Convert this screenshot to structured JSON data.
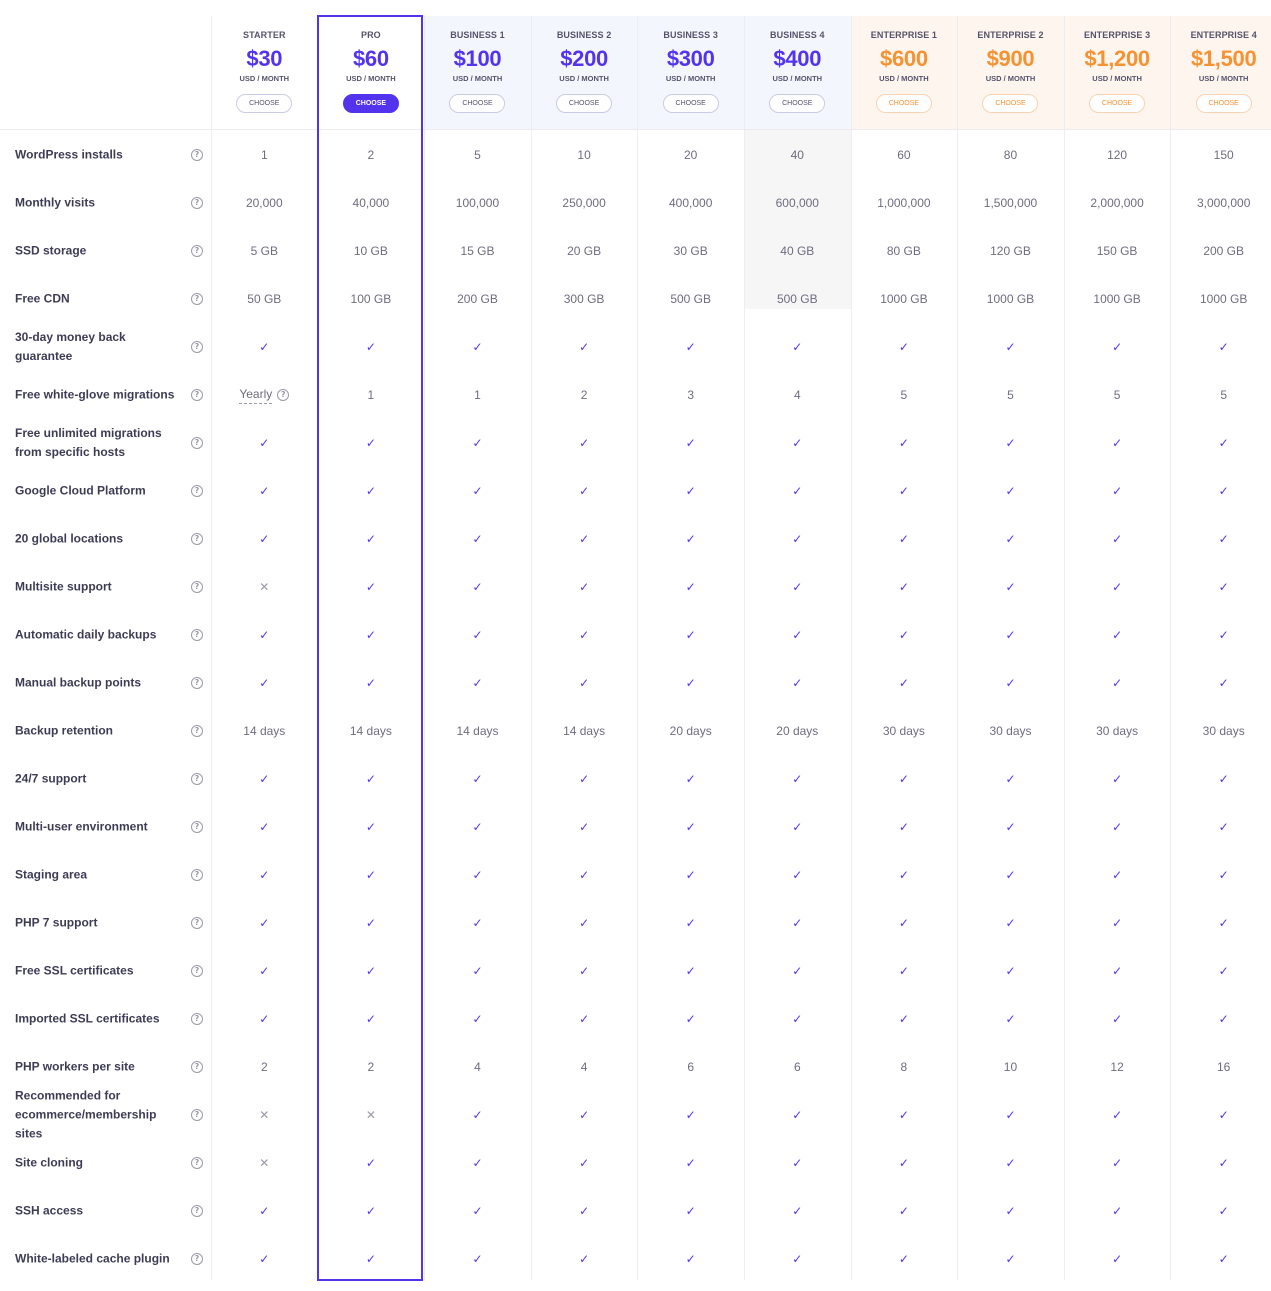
{
  "colors": {
    "accent": "#5333ed",
    "enterprise_accent": "#f79232",
    "business_bg": "#f4f6fd",
    "enterprise_bg": "#fef6ee"
  },
  "plans": [
    {
      "name": "STARTER",
      "price": "$30",
      "unit": "USD / MONTH",
      "button": "CHOOSE",
      "tier": "starter"
    },
    {
      "name": "PRO",
      "price": "$60",
      "unit": "USD / MONTH",
      "button": "CHOOSE",
      "tier": "pro"
    },
    {
      "name": "BUSINESS 1",
      "price": "$100",
      "unit": "USD / MONTH",
      "button": "CHOOSE",
      "tier": "business"
    },
    {
      "name": "BUSINESS 2",
      "price": "$200",
      "unit": "USD / MONTH",
      "button": "CHOOSE",
      "tier": "business"
    },
    {
      "name": "BUSINESS 3",
      "price": "$300",
      "unit": "USD / MONTH",
      "button": "CHOOSE",
      "tier": "business"
    },
    {
      "name": "BUSINESS 4",
      "price": "$400",
      "unit": "USD / MONTH",
      "button": "CHOOSE",
      "tier": "business"
    },
    {
      "name": "ENTERPRISE 1",
      "price": "$600",
      "unit": "USD / MONTH",
      "button": "CHOOSE",
      "tier": "enterprise"
    },
    {
      "name": "ENTERPRISE 2",
      "price": "$900",
      "unit": "USD / MONTH",
      "button": "CHOOSE",
      "tier": "enterprise"
    },
    {
      "name": "ENTERPRISE 3",
      "price": "$1,200",
      "unit": "USD / MONTH",
      "button": "CHOOSE",
      "tier": "enterprise"
    },
    {
      "name": "ENTERPRISE 4",
      "price": "$1,500",
      "unit": "USD / MONTH",
      "button": "CHOOSE",
      "tier": "enterprise"
    }
  ],
  "info_icon_glyph": "?",
  "check_glyph": "✓",
  "cross_glyph": "✕",
  "features": [
    {
      "label": "WordPress installs",
      "values": [
        "1",
        "2",
        "5",
        "10",
        "20",
        "40",
        "60",
        "80",
        "120",
        "150"
      ]
    },
    {
      "label": "Monthly visits",
      "values": [
        "20,000",
        "40,000",
        "100,000",
        "250,000",
        "400,000",
        "600,000",
        "1,000,000",
        "1,500,000",
        "2,000,000",
        "3,000,000"
      ]
    },
    {
      "label": "SSD storage",
      "values": [
        "5 GB",
        "10 GB",
        "15 GB",
        "20 GB",
        "30 GB",
        "40 GB",
        "80 GB",
        "120 GB",
        "150 GB",
        "200 GB"
      ]
    },
    {
      "label": "Free CDN",
      "values": [
        "50 GB",
        "100 GB",
        "200 GB",
        "300 GB",
        "500 GB",
        "500 GB",
        "1000 GB",
        "1000 GB",
        "1000 GB",
        "1000 GB"
      ]
    },
    {
      "label": "30-day money back guarantee",
      "values": [
        "check",
        "check",
        "check",
        "check",
        "check",
        "check",
        "check",
        "check",
        "check",
        "check"
      ]
    },
    {
      "label": "Free white-glove migrations",
      "values": [
        "Yearly",
        "1",
        "1",
        "2",
        "3",
        "4",
        "5",
        "5",
        "5",
        "5"
      ]
    },
    {
      "label": "Free unlimited migrations from specific hosts",
      "values": [
        "check",
        "check",
        "check",
        "check",
        "check",
        "check",
        "check",
        "check",
        "check",
        "check"
      ]
    },
    {
      "label": "Google Cloud Platform",
      "values": [
        "check",
        "check",
        "check",
        "check",
        "check",
        "check",
        "check",
        "check",
        "check",
        "check"
      ]
    },
    {
      "label": "20 global locations",
      "values": [
        "check",
        "check",
        "check",
        "check",
        "check",
        "check",
        "check",
        "check",
        "check",
        "check"
      ]
    },
    {
      "label": "Multisite support",
      "values": [
        "cross",
        "check",
        "check",
        "check",
        "check",
        "check",
        "check",
        "check",
        "check",
        "check"
      ]
    },
    {
      "label": "Automatic daily backups",
      "values": [
        "check",
        "check",
        "check",
        "check",
        "check",
        "check",
        "check",
        "check",
        "check",
        "check"
      ]
    },
    {
      "label": "Manual backup points",
      "values": [
        "check",
        "check",
        "check",
        "check",
        "check",
        "check",
        "check",
        "check",
        "check",
        "check"
      ]
    },
    {
      "label": "Backup retention",
      "values": [
        "14 days",
        "14 days",
        "14 days",
        "14 days",
        "20 days",
        "20 days",
        "30 days",
        "30 days",
        "30 days",
        "30 days"
      ]
    },
    {
      "label": "24/7 support",
      "values": [
        "check",
        "check",
        "check",
        "check",
        "check",
        "check",
        "check",
        "check",
        "check",
        "check"
      ]
    },
    {
      "label": "Multi-user environment",
      "values": [
        "check",
        "check",
        "check",
        "check",
        "check",
        "check",
        "check",
        "check",
        "check",
        "check"
      ]
    },
    {
      "label": "Staging area",
      "values": [
        "check",
        "check",
        "check",
        "check",
        "check",
        "check",
        "check",
        "check",
        "check",
        "check"
      ]
    },
    {
      "label": "PHP 7 support",
      "values": [
        "check",
        "check",
        "check",
        "check",
        "check",
        "check",
        "check",
        "check",
        "check",
        "check"
      ]
    },
    {
      "label": "Free SSL certificates",
      "values": [
        "check",
        "check",
        "check",
        "check",
        "check",
        "check",
        "check",
        "check",
        "check",
        "check"
      ]
    },
    {
      "label": "Imported SSL certificates",
      "values": [
        "check",
        "check",
        "check",
        "check",
        "check",
        "check",
        "check",
        "check",
        "check",
        "check"
      ]
    },
    {
      "label": "PHP workers per site",
      "values": [
        "2",
        "2",
        "4",
        "4",
        "6",
        "6",
        "8",
        "10",
        "12",
        "16"
      ]
    },
    {
      "label": "Recommended for ecommerce/membership sites",
      "values": [
        "cross",
        "cross",
        "check",
        "check",
        "check",
        "check",
        "check",
        "check",
        "check",
        "check"
      ]
    },
    {
      "label": "Site cloning",
      "values": [
        "cross",
        "check",
        "check",
        "check",
        "check",
        "check",
        "check",
        "check",
        "check",
        "check"
      ]
    },
    {
      "label": "SSH access",
      "values": [
        "check",
        "check",
        "check",
        "check",
        "check",
        "check",
        "check",
        "check",
        "check",
        "check"
      ]
    },
    {
      "label": "White-labeled cache plugin",
      "values": [
        "check",
        "check",
        "check",
        "check",
        "check",
        "check",
        "check",
        "check",
        "check",
        "check"
      ]
    }
  ]
}
